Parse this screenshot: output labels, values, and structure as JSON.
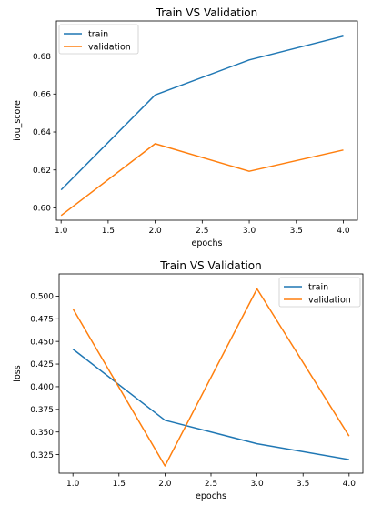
{
  "colors": {
    "train": "#1f77b4",
    "validation": "#ff7f0e"
  },
  "chart_data": [
    {
      "type": "line",
      "title": "Train VS Validation",
      "xlabel": "epochs",
      "ylabel": "iou_score",
      "x": [
        1,
        2,
        3,
        4
      ],
      "xlim": [
        0.95,
        4.15
      ],
      "ylim": [
        0.5935,
        0.6985
      ],
      "xticks": [
        1.0,
        1.5,
        2.0,
        2.5,
        3.0,
        3.5,
        4.0
      ],
      "xtick_labels": [
        "1.0",
        "1.5",
        "2.0",
        "2.5",
        "3.0",
        "3.5",
        "4.0"
      ],
      "yticks": [
        0.6,
        0.62,
        0.64,
        0.66,
        0.68
      ],
      "ytick_labels": [
        "0.60",
        "0.62",
        "0.64",
        "0.66",
        "0.68"
      ],
      "legend": "top-left",
      "grid": false,
      "series": [
        {
          "name": "train",
          "values": [
            0.6095,
            0.6595,
            0.678,
            0.6905
          ]
        },
        {
          "name": "validation",
          "values": [
            0.596,
            0.6338,
            0.6193,
            0.6305
          ]
        }
      ]
    },
    {
      "type": "line",
      "title": "Train VS Validation",
      "xlabel": "epochs",
      "ylabel": "loss",
      "x": [
        1,
        2,
        3,
        4
      ],
      "xlim": [
        0.85,
        4.15
      ],
      "ylim": [
        0.3045,
        0.5245
      ],
      "xticks": [
        1.0,
        1.5,
        2.0,
        2.5,
        3.0,
        3.5,
        4.0
      ],
      "xtick_labels": [
        "1.0",
        "1.5",
        "2.0",
        "2.5",
        "3.0",
        "3.5",
        "4.0"
      ],
      "yticks": [
        0.325,
        0.35,
        0.375,
        0.4,
        0.425,
        0.45,
        0.475,
        0.5
      ],
      "ytick_labels": [
        "0.325",
        "0.350",
        "0.375",
        "0.400",
        "0.425",
        "0.450",
        "0.475",
        "0.500"
      ],
      "legend": "top-right",
      "grid": false,
      "series": [
        {
          "name": "train",
          "values": [
            0.4415,
            0.363,
            0.337,
            0.3195
          ]
        },
        {
          "name": "validation",
          "values": [
            0.486,
            0.3125,
            0.508,
            0.3455
          ]
        }
      ]
    }
  ]
}
